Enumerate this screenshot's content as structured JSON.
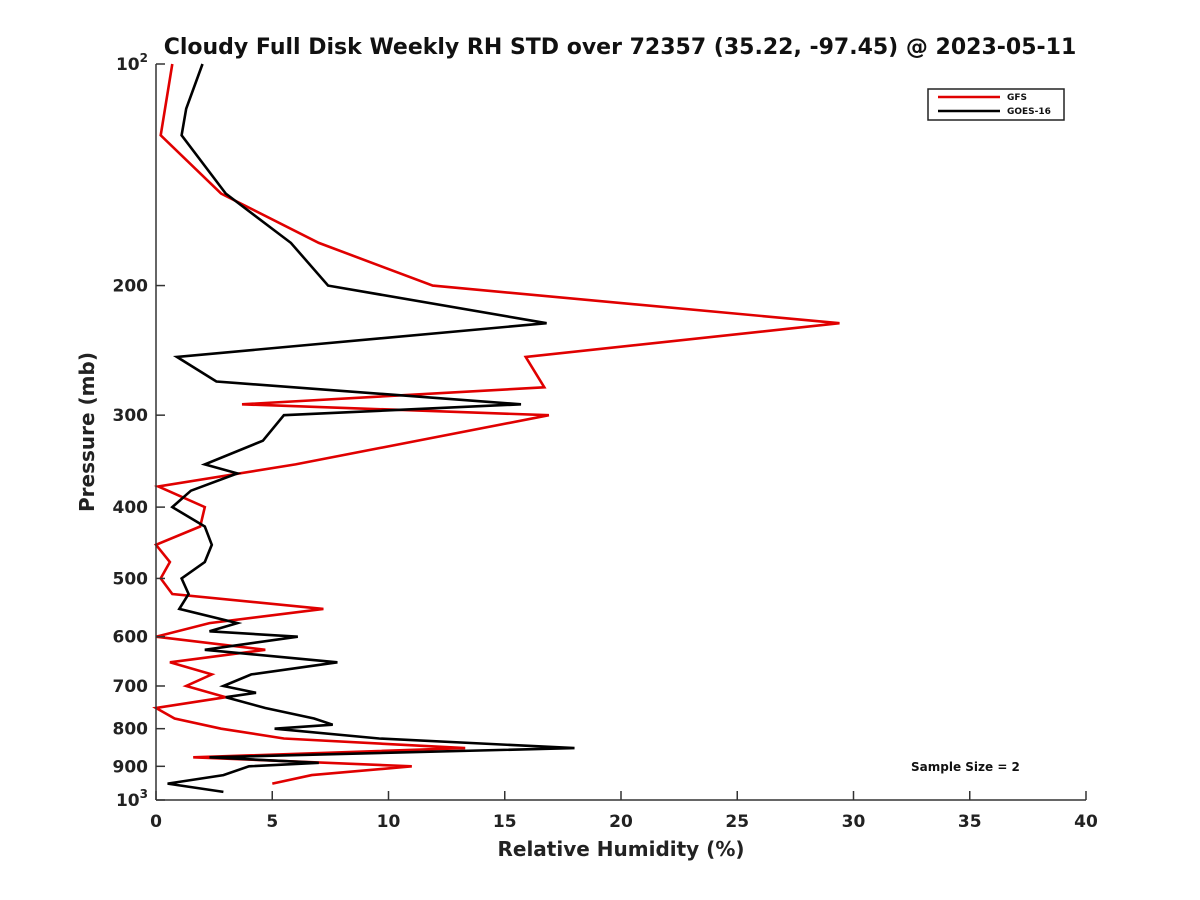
{
  "chart_data": {
    "type": "line",
    "title": "Cloudy Full Disk Weekly RH STD over 72357 (35.22, -97.45) @ 2023-05-11",
    "xlabel": "Relative Humidity (%)",
    "ylabel": "Pressure (mb)",
    "xlim": [
      0,
      40
    ],
    "ylim": [
      100,
      1000
    ],
    "yscale": "log",
    "y_reversed": true,
    "x_ticks": [
      "0",
      "5",
      "10",
      "15",
      "20",
      "25",
      "30",
      "35",
      "40"
    ],
    "x_tick_values": [
      0,
      5,
      10,
      15,
      20,
      25,
      30,
      35,
      40
    ],
    "y_ticks": [
      {
        "value": 100,
        "base": "10",
        "exp": "2"
      },
      {
        "value": 200,
        "label": "200"
      },
      {
        "value": 300,
        "label": "300"
      },
      {
        "value": 400,
        "label": "400"
      },
      {
        "value": 500,
        "label": "500"
      },
      {
        "value": 600,
        "label": "600"
      },
      {
        "value": 700,
        "label": "700"
      },
      {
        "value": 800,
        "label": "800"
      },
      {
        "value": 900,
        "label": "900"
      },
      {
        "value": 1000,
        "base": "10",
        "exp": "3"
      }
    ],
    "grid": false,
    "legend_position": "top-right",
    "series": [
      {
        "name": "GFS",
        "color": "#e00000",
        "points": [
          [
            0.7,
            100
          ],
          [
            0.2,
            125
          ],
          [
            2.8,
            150
          ],
          [
            7,
            175
          ],
          [
            11.9,
            200
          ],
          [
            29.4,
            225
          ],
          [
            15.9,
            250
          ],
          [
            16.7,
            275
          ],
          [
            3.7,
            290
          ],
          [
            16.9,
            300
          ],
          [
            6,
            350
          ],
          [
            0.1,
            375
          ],
          [
            2.1,
            400
          ],
          [
            1.9,
            425
          ],
          [
            0,
            450
          ],
          [
            0.6,
            475
          ],
          [
            0.2,
            500
          ],
          [
            0.7,
            525
          ],
          [
            7.2,
            550
          ],
          [
            2.3,
            575
          ],
          [
            0,
            600
          ],
          [
            4.7,
            625
          ],
          [
            0.6,
            650
          ],
          [
            2.4,
            675
          ],
          [
            1.3,
            700
          ],
          [
            3.0,
            725
          ],
          [
            0,
            750
          ],
          [
            0.8,
            775
          ],
          [
            2.8,
            800
          ],
          [
            5.5,
            825
          ],
          [
            13.3,
            850
          ],
          [
            1.6,
            875
          ],
          [
            11.0,
            900
          ],
          [
            6.7,
            925
          ],
          [
            5.0,
            950
          ]
        ]
      },
      {
        "name": "GOES-16",
        "color": "#000000",
        "points": [
          [
            2.0,
            100
          ],
          [
            1.3,
            115
          ],
          [
            1.1,
            125
          ],
          [
            3,
            150
          ],
          [
            5.8,
            175
          ],
          [
            7.4,
            200
          ],
          [
            16.8,
            225
          ],
          [
            0.9,
            250
          ],
          [
            2.6,
            270
          ],
          [
            15.7,
            290
          ],
          [
            5.5,
            300
          ],
          [
            4.6,
            325
          ],
          [
            2.1,
            350
          ],
          [
            3.5,
            360
          ],
          [
            1.5,
            380
          ],
          [
            0.7,
            400
          ],
          [
            2.1,
            425
          ],
          [
            2.4,
            450
          ],
          [
            2.1,
            475
          ],
          [
            1.1,
            500
          ],
          [
            1.4,
            525
          ],
          [
            1.0,
            550
          ],
          [
            3.5,
            575
          ],
          [
            2.3,
            590
          ],
          [
            6.1,
            600
          ],
          [
            2.1,
            625
          ],
          [
            7.8,
            650
          ],
          [
            4.1,
            675
          ],
          [
            2.9,
            700
          ],
          [
            4.3,
            715
          ],
          [
            3.0,
            725
          ],
          [
            4.7,
            750
          ],
          [
            6.8,
            775
          ],
          [
            7.6,
            790
          ],
          [
            5.1,
            800
          ],
          [
            9.6,
            825
          ],
          [
            18.0,
            850
          ],
          [
            2.3,
            875
          ],
          [
            7.0,
            890
          ],
          [
            4.0,
            900
          ],
          [
            2.9,
            925
          ],
          [
            0.5,
            950
          ],
          [
            2.9,
            975
          ]
        ]
      }
    ],
    "legend": [
      {
        "label": "GFS",
        "color": "#e00000"
      },
      {
        "label": "GOES-16",
        "color": "#000000"
      }
    ],
    "annotation": "Sample Size = 2"
  }
}
